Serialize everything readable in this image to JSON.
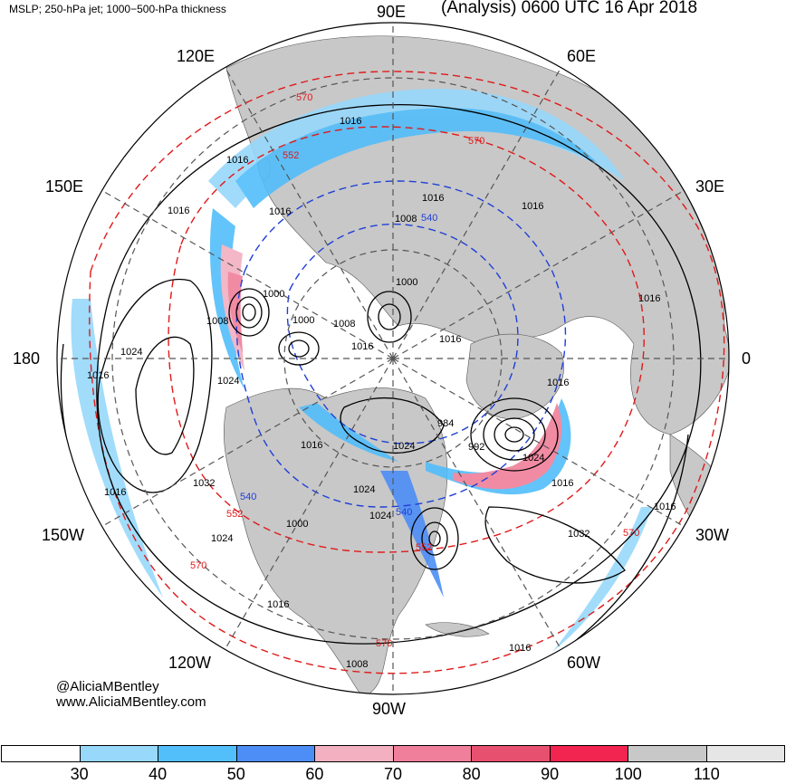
{
  "header": {
    "left_title": "MSLP; 250-hPa jet; 1000−500-hPa thickness",
    "right_title": "(Analysis) 0600 UTC 16 Apr 2018"
  },
  "longitude_labels": {
    "lon_90e": "90E",
    "lon_120e": "120E",
    "lon_60e": "60E",
    "lon_150e": "150E",
    "lon_30e": "30E",
    "lon_180": "180",
    "lon_0": "0",
    "lon_150w": "150W",
    "lon_30w": "30W",
    "lon_120w": "120W",
    "lon_60w": "60W",
    "lon_90w": "90W"
  },
  "credits": {
    "handle": "@AliciaMBentley",
    "website": "www.AliciaMBentley.com"
  },
  "colorbar": {
    "colors": [
      "#ffffff",
      "#97d8fb",
      "#52befa",
      "#4d8ef6",
      "#f2b0c1",
      "#ef7f9a",
      "#e8506f",
      "#f22450",
      "#c8c8c8",
      "#e6e6e6"
    ],
    "ticks": [
      "30",
      "40",
      "50",
      "60",
      "70",
      "80",
      "90",
      "100",
      "110"
    ]
  },
  "map_colors": {
    "land": "#c8c8c8",
    "ocean": "#ffffff",
    "mslp_contour": "#000000",
    "thickness_cold": "#1f3fd6",
    "thickness_warm": "#e01a1a"
  },
  "contour_labels": {
    "mslp": [
      "1016",
      "1016",
      "1016",
      "1016",
      "1016",
      "1016",
      "1016",
      "1016",
      "1016",
      "1016",
      "1016",
      "1016",
      "1016",
      "1016",
      "1016",
      "1016",
      "1016",
      "1008",
      "1008",
      "1008",
      "1008",
      "1000",
      "1000",
      "1000",
      "1000",
      "992",
      "984",
      "1024",
      "1024",
      "1024",
      "1024",
      "1024",
      "1024",
      "1024",
      "1032",
      "1032"
    ],
    "thickness": [
      "570",
      "570",
      "570",
      "570",
      "570",
      "552",
      "552",
      "552",
      "540",
      "540",
      "540"
    ]
  }
}
